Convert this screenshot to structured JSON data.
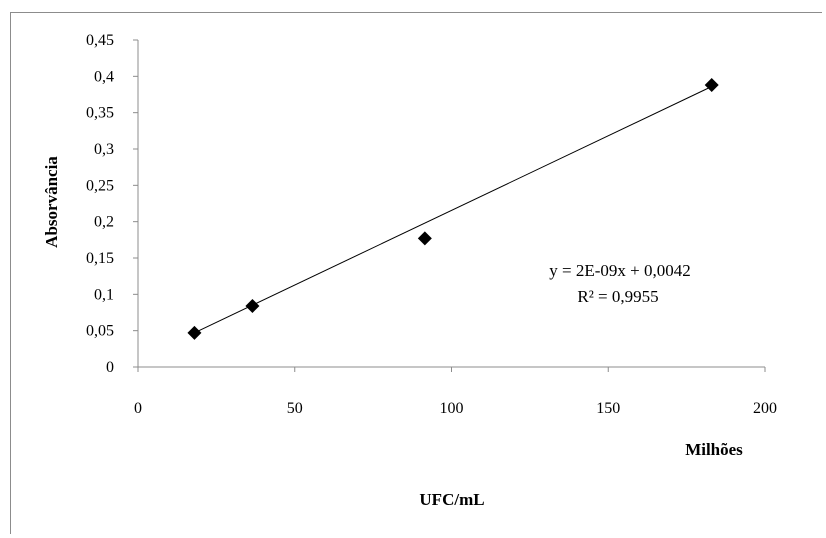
{
  "chart_data": {
    "type": "scatter",
    "title": "",
    "xlabel": "UFC/mL",
    "ylabel": "Absorvância",
    "x_unit_label": "Milhões",
    "xlim": [
      0,
      200
    ],
    "ylim": [
      0,
      0.45
    ],
    "x_ticks": [
      0,
      50,
      100,
      150,
      200
    ],
    "x_tick_labels": [
      "0",
      "50",
      "100",
      "150",
      "200"
    ],
    "y_ticks": [
      0,
      0.05,
      0.1,
      0.15,
      0.2,
      0.25,
      0.3,
      0.35,
      0.4,
      0.45
    ],
    "y_tick_labels": [
      "0",
      "0,05",
      "0,1",
      "0,15",
      "0,2",
      "0,25",
      "0,3",
      "0,35",
      "0,4",
      "0,45"
    ],
    "grid": false,
    "legend": "none",
    "marker": "diamond",
    "marker_color": "#000000",
    "series": [
      {
        "points": [
          {
            "x": 18,
            "y": 0.047
          },
          {
            "x": 36.5,
            "y": 0.084
          },
          {
            "x": 91.5,
            "y": 0.177
          },
          {
            "x": 183,
            "y": 0.388
          }
        ]
      }
    ],
    "trendline": {
      "type": "linear",
      "x_range": [
        17,
        183
      ],
      "y_range": [
        0.045,
        0.386
      ],
      "equation": "y = 2E-09x + 0,0042",
      "r_squared": "R² = 0,9955"
    }
  }
}
